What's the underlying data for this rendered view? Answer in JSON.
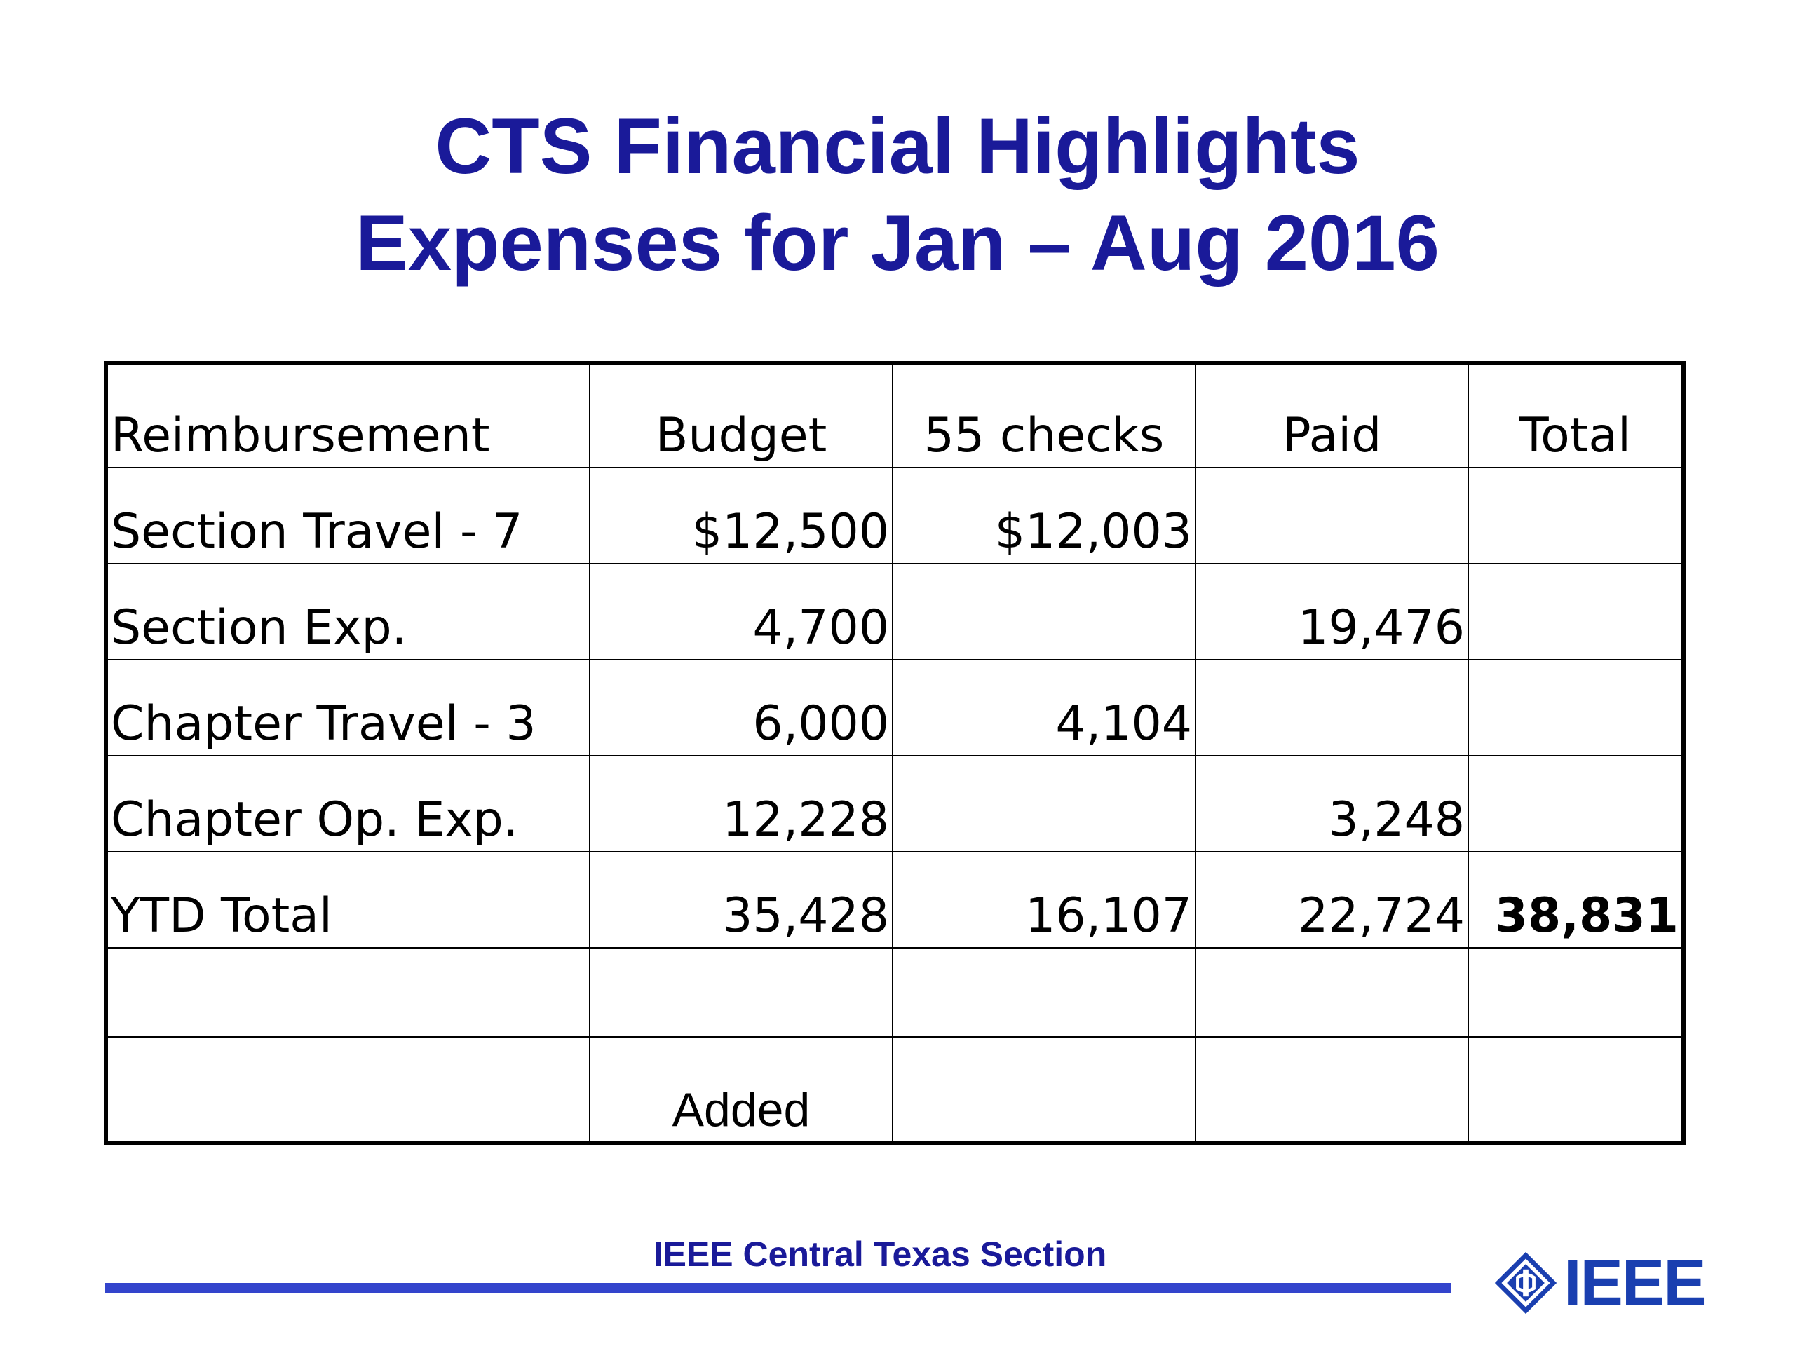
{
  "title": {
    "line1": "CTS Financial Highlights",
    "line2": "Expenses for Jan – Aug 2016"
  },
  "table": {
    "headers": [
      "Reimbursement",
      "Budget",
      "55 checks",
      "Paid",
      "Total"
    ],
    "rows": [
      {
        "label": "Section Travel - 7",
        "budget": "$12,500",
        "checks": "$12,003",
        "paid": "",
        "total": ""
      },
      {
        "label": "Section Exp.",
        "budget": "4,700",
        "checks": "",
        "paid": "19,476",
        "total": ""
      },
      {
        "label": "Chapter Travel - 3",
        "budget": "6,000",
        "checks": "4,104",
        "paid": "",
        "total": ""
      },
      {
        "label": "Chapter Op. Exp.",
        "budget": "12,228",
        "checks": "",
        "paid": "3,248",
        "total": ""
      },
      {
        "label": "YTD Total",
        "budget": "35,428",
        "checks": "16,107",
        "paid": "22,724",
        "total": "38,831"
      }
    ],
    "note": "Added"
  },
  "footer": {
    "section_name": "IEEE Central Texas Section",
    "logo_text": "IEEE",
    "logo_icon": "ieee-diamond-icon",
    "accent_color": "#3344cc",
    "title_color": "#1a1a99"
  }
}
